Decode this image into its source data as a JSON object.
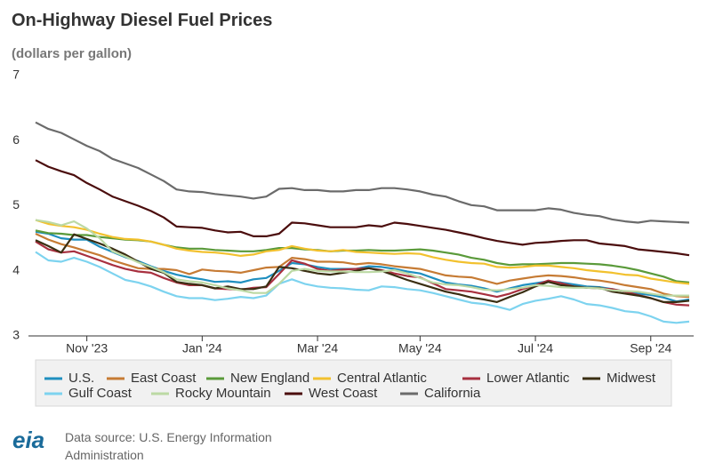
{
  "chart_data": {
    "type": "line",
    "title": "On-Highway Diesel Fuel Prices",
    "subtitle": "(dollars per gallon)",
    "source": "Data source: U.S. Energy Information Administration",
    "logo": "eia",
    "categories": [
      null,
      null,
      null,
      null,
      "Nov '23",
      null,
      null,
      null,
      null,
      null,
      null,
      null,
      null,
      "Jan '24",
      null,
      null,
      null,
      null,
      null,
      null,
      null,
      null,
      "Mar '24",
      null,
      null,
      null,
      null,
      null,
      null,
      null,
      "May '24",
      null,
      null,
      null,
      null,
      null,
      null,
      null,
      null,
      "Jul '24",
      null,
      null,
      null,
      null,
      null,
      null,
      null,
      null,
      "Sep '24",
      null,
      null,
      null
    ],
    "ylim": [
      3,
      7
    ],
    "yticks": [
      3,
      4,
      5,
      6,
      7
    ],
    "grid": false,
    "series": [
      {
        "name": "U.S.",
        "color": "#1f8fbf",
        "values": [
          4.6,
          4.57,
          4.5,
          4.48,
          4.48,
          4.37,
          4.29,
          4.21,
          4.15,
          4.07,
          4.0,
          3.94,
          3.9,
          3.87,
          3.83,
          3.84,
          3.82,
          3.87,
          3.89,
          4.0,
          4.12,
          4.1,
          4.06,
          4.03,
          4.03,
          4.03,
          4.07,
          4.06,
          4.03,
          3.99,
          3.96,
          3.89,
          3.82,
          3.79,
          3.77,
          3.73,
          3.68,
          3.73,
          3.78,
          3.81,
          3.84,
          3.82,
          3.79,
          3.76,
          3.75,
          3.72,
          3.68,
          3.65,
          3.63,
          3.59,
          3.53,
          3.56
        ]
      },
      {
        "name": "East Coast",
        "color": "#c67b34",
        "values": [
          4.57,
          4.48,
          4.41,
          4.36,
          4.3,
          4.24,
          4.16,
          4.1,
          4.04,
          4.03,
          4.03,
          4.01,
          3.95,
          4.02,
          4.0,
          3.99,
          3.97,
          4.01,
          4.05,
          4.06,
          4.2,
          4.18,
          4.14,
          4.14,
          4.13,
          4.1,
          4.12,
          4.1,
          4.07,
          4.05,
          4.03,
          3.98,
          3.93,
          3.91,
          3.9,
          3.85,
          3.8,
          3.85,
          3.88,
          3.91,
          3.93,
          3.92,
          3.9,
          3.87,
          3.85,
          3.82,
          3.78,
          3.75,
          3.72,
          3.65,
          3.61,
          3.6
        ]
      },
      {
        "name": "New England",
        "color": "#5a9a3a",
        "values": [
          4.62,
          4.58,
          4.57,
          4.55,
          4.55,
          4.52,
          4.5,
          4.48,
          4.47,
          4.45,
          4.4,
          4.36,
          4.34,
          4.34,
          4.32,
          4.31,
          4.3,
          4.3,
          4.32,
          4.35,
          4.35,
          4.33,
          4.32,
          4.3,
          4.31,
          4.31,
          4.32,
          4.31,
          4.31,
          4.32,
          4.33,
          4.31,
          4.28,
          4.25,
          4.2,
          4.17,
          4.12,
          4.09,
          4.1,
          4.1,
          4.11,
          4.12,
          4.12,
          4.11,
          4.1,
          4.08,
          4.05,
          4.01,
          3.96,
          3.91,
          3.84,
          3.82
        ]
      },
      {
        "name": "Central Atlantic",
        "color": "#f2c12e",
        "values": [
          4.78,
          4.72,
          4.69,
          4.67,
          4.63,
          4.57,
          4.52,
          4.49,
          4.48,
          4.45,
          4.4,
          4.34,
          4.31,
          4.29,
          4.28,
          4.26,
          4.23,
          4.25,
          4.3,
          4.32,
          4.38,
          4.34,
          4.31,
          4.3,
          4.32,
          4.29,
          4.28,
          4.27,
          4.26,
          4.27,
          4.26,
          4.21,
          4.17,
          4.14,
          4.12,
          4.11,
          4.06,
          4.05,
          4.06,
          4.08,
          4.08,
          4.06,
          4.04,
          4.01,
          3.99,
          3.97,
          3.94,
          3.93,
          3.88,
          3.85,
          3.82,
          3.8
        ]
      },
      {
        "name": "Lower Atlantic",
        "color": "#a8303f",
        "values": [
          4.45,
          4.33,
          4.28,
          4.3,
          4.23,
          4.16,
          4.09,
          4.03,
          3.99,
          3.97,
          3.89,
          3.82,
          3.78,
          3.78,
          3.73,
          3.72,
          3.71,
          3.74,
          3.75,
          3.95,
          4.16,
          4.11,
          4.03,
          4.0,
          4.02,
          4.03,
          4.04,
          4.01,
          3.96,
          3.92,
          3.9,
          3.81,
          3.72,
          3.7,
          3.68,
          3.64,
          3.6,
          3.65,
          3.72,
          3.78,
          3.85,
          3.81,
          3.76,
          3.74,
          3.73,
          3.72,
          3.68,
          3.63,
          3.58,
          3.52,
          3.48,
          3.47
        ]
      },
      {
        "name": "Midwest",
        "color": "#3a2e12",
        "values": [
          4.47,
          4.38,
          4.28,
          4.56,
          4.49,
          4.42,
          4.34,
          4.25,
          4.14,
          4.03,
          3.97,
          3.83,
          3.8,
          3.78,
          3.73,
          3.76,
          3.72,
          3.72,
          3.76,
          4.06,
          4.04,
          4.0,
          3.96,
          3.94,
          3.97,
          4.0,
          4.04,
          4.0,
          3.93,
          3.86,
          3.8,
          3.74,
          3.68,
          3.64,
          3.59,
          3.56,
          3.52,
          3.6,
          3.67,
          3.76,
          3.83,
          3.78,
          3.76,
          3.74,
          3.74,
          3.68,
          3.65,
          3.62,
          3.58,
          3.52,
          3.52,
          3.54
        ]
      },
      {
        "name": "Gulf Coast",
        "color": "#7dd3ef",
        "values": [
          4.29,
          4.16,
          4.14,
          4.2,
          4.14,
          4.06,
          3.96,
          3.86,
          3.82,
          3.76,
          3.68,
          3.61,
          3.58,
          3.58,
          3.55,
          3.57,
          3.6,
          3.58,
          3.62,
          3.8,
          3.87,
          3.8,
          3.76,
          3.74,
          3.73,
          3.71,
          3.7,
          3.76,
          3.75,
          3.72,
          3.7,
          3.66,
          3.61,
          3.56,
          3.51,
          3.49,
          3.45,
          3.4,
          3.49,
          3.54,
          3.57,
          3.61,
          3.56,
          3.49,
          3.47,
          3.43,
          3.38,
          3.36,
          3.3,
          3.22,
          3.2,
          3.22
        ]
      },
      {
        "name": "Rocky Mountain",
        "color": "#bcd9a4",
        "values": [
          4.78,
          4.75,
          4.7,
          4.76,
          4.65,
          4.5,
          4.3,
          4.22,
          4.13,
          4.06,
          3.98,
          3.87,
          3.84,
          3.82,
          3.78,
          3.73,
          3.7,
          3.66,
          3.66,
          3.8,
          4.0,
          4.03,
          4.0,
          3.99,
          3.99,
          3.98,
          3.98,
          3.99,
          4.01,
          3.96,
          3.89,
          3.82,
          3.79,
          3.78,
          3.75,
          3.71,
          3.7,
          3.72,
          3.74,
          3.78,
          3.77,
          3.75,
          3.74,
          3.74,
          3.73,
          3.7,
          3.69,
          3.68,
          3.65,
          3.62,
          3.62,
          3.62
        ]
      },
      {
        "name": "West Coast",
        "color": "#4b0d0d",
        "values": [
          5.7,
          5.6,
          5.53,
          5.47,
          5.35,
          5.25,
          5.14,
          5.07,
          5.0,
          4.92,
          4.82,
          4.68,
          4.67,
          4.66,
          4.62,
          4.59,
          4.6,
          4.53,
          4.53,
          4.57,
          4.74,
          4.73,
          4.7,
          4.67,
          4.67,
          4.67,
          4.7,
          4.68,
          4.74,
          4.72,
          4.69,
          4.66,
          4.63,
          4.59,
          4.55,
          4.5,
          4.46,
          4.43,
          4.4,
          4.43,
          4.44,
          4.46,
          4.47,
          4.47,
          4.42,
          4.4,
          4.38,
          4.33,
          4.31,
          4.29,
          4.27,
          4.24
        ]
      },
      {
        "name": "California",
        "color": "#6b6b6b",
        "values": [
          6.28,
          6.18,
          6.12,
          6.02,
          5.92,
          5.84,
          5.72,
          5.65,
          5.58,
          5.48,
          5.38,
          5.25,
          5.22,
          5.21,
          5.18,
          5.16,
          5.14,
          5.11,
          5.14,
          5.26,
          5.27,
          5.24,
          5.24,
          5.22,
          5.22,
          5.24,
          5.24,
          5.27,
          5.27,
          5.25,
          5.22,
          5.17,
          5.14,
          5.07,
          5.01,
          4.99,
          4.93,
          4.93,
          4.93,
          4.93,
          4.96,
          4.94,
          4.89,
          4.86,
          4.84,
          4.79,
          4.76,
          4.74,
          4.77,
          4.76,
          4.75,
          4.74
        ]
      }
    ]
  }
}
